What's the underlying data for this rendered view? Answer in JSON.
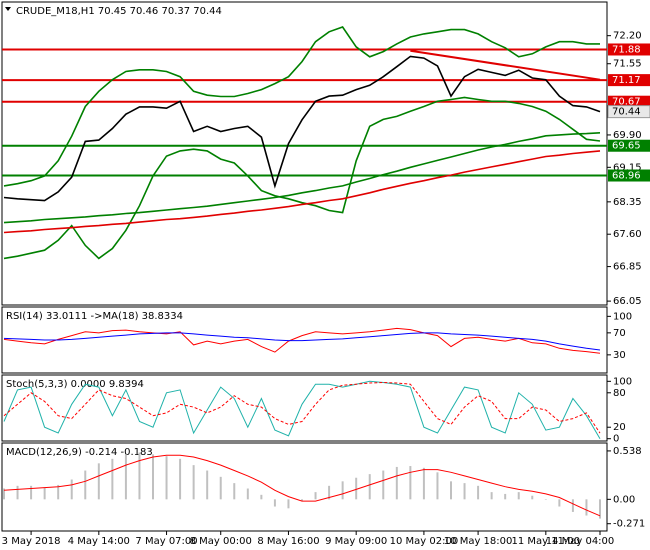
{
  "chart_data": [
    {
      "type": "line",
      "title": "CRUDE_M18,H1  70.45 70.46 70.37 70.44",
      "categories": [
        null,
        null,
        "3 May 2018",
        null,
        null,
        null,
        null,
        "4 May 14:00",
        null,
        null,
        null,
        null,
        "7 May 07:00",
        null,
        null,
        null,
        "8 May 00:00",
        null,
        null,
        null,
        null,
        "8 May 16:00",
        null,
        null,
        null,
        null,
        "9 May 09:00",
        null,
        null,
        null,
        null,
        "10 May 02:00",
        null,
        null,
        null,
        "10 May 18:00",
        null,
        null,
        null,
        null,
        "11 May 11:00",
        null,
        null,
        null,
        "14 May 04:00"
      ],
      "series": [
        {
          "color": "#000000",
          "values": [
            68.45,
            68.42,
            68.4,
            68.38,
            68.58,
            68.92,
            69.75,
            69.78,
            70.05,
            70.38,
            70.55,
            70.55,
            70.52,
            70.68,
            69.98,
            70.1,
            69.98,
            70.05,
            70.1,
            69.85,
            68.72,
            69.7,
            70.25,
            70.68,
            70.8,
            70.82,
            70.95,
            71.05,
            71.25,
            71.48,
            71.72,
            71.68,
            71.5,
            70.8,
            71.25,
            71.42,
            71.35,
            71.28,
            71.4,
            71.22,
            71.18,
            70.8,
            70.58,
            70.55,
            70.44
          ]
        },
        {
          "color": "#008000",
          "values": [
            68.72,
            68.77,
            68.84,
            68.95,
            69.3,
            69.87,
            70.56,
            70.91,
            71.18,
            71.37,
            71.41,
            71.41,
            71.37,
            71.25,
            70.91,
            70.82,
            70.79,
            70.79,
            70.86,
            70.95,
            71.09,
            71.25,
            71.6,
            72.06,
            72.29,
            72.4,
            71.94,
            71.71,
            71.83,
            72.01,
            72.17,
            72.24,
            72.29,
            72.34,
            72.34,
            72.24,
            72.06,
            71.92,
            71.71,
            71.78,
            71.94,
            72.06,
            72.06,
            72.01,
            72.01
          ]
        },
        {
          "color": "#008000",
          "values": [
            67.04,
            67.09,
            67.16,
            67.23,
            67.46,
            67.8,
            67.34,
            67.04,
            67.27,
            67.69,
            68.26,
            68.95,
            69.41,
            69.53,
            69.57,
            69.53,
            69.34,
            69.25,
            68.95,
            68.61,
            68.49,
            68.42,
            68.33,
            68.26,
            68.15,
            68.1,
            69.3,
            70.1,
            70.26,
            70.33,
            70.45,
            70.56,
            70.68,
            70.72,
            70.77,
            70.72,
            70.68,
            70.68,
            70.63,
            70.56,
            70.45,
            70.26,
            70.03,
            69.8,
            69.76
          ]
        },
        {
          "color": "#e00000",
          "values": [
            67.64,
            67.66,
            67.68,
            67.71,
            67.73,
            67.75,
            67.78,
            67.8,
            67.83,
            67.85,
            67.88,
            67.91,
            67.94,
            67.96,
            67.99,
            68.02,
            68.06,
            68.09,
            68.13,
            68.16,
            68.2,
            68.24,
            68.29,
            68.33,
            68.38,
            68.42,
            68.49,
            68.56,
            68.64,
            68.71,
            68.78,
            68.84,
            68.91,
            68.97,
            69.04,
            69.1,
            69.16,
            69.22,
            69.28,
            69.34,
            69.4,
            69.43,
            69.47,
            69.5,
            69.53
          ]
        },
        {
          "color": "#008000",
          "values": [
            67.87,
            67.89,
            67.91,
            67.94,
            67.96,
            67.98,
            68.0,
            68.03,
            68.05,
            68.08,
            68.1,
            68.13,
            68.16,
            68.19,
            68.22,
            68.25,
            68.29,
            68.33,
            68.37,
            68.41,
            68.45,
            68.5,
            68.56,
            68.61,
            68.67,
            68.72,
            68.81,
            68.89,
            68.98,
            69.06,
            69.15,
            69.23,
            69.31,
            69.39,
            69.47,
            69.55,
            69.62,
            69.68,
            69.75,
            69.81,
            69.88,
            69.9,
            69.92,
            69.93,
            69.95
          ]
        }
      ],
      "trend_line": {
        "color": "#e00000",
        "x": [
          30,
          44
        ],
        "values": [
          71.85,
          71.18
        ]
      },
      "levels": [
        {
          "value": 71.88,
          "color": "#e00000"
        },
        {
          "value": 71.17,
          "color": "#e00000"
        },
        {
          "value": 70.67,
          "color": "#e00000"
        },
        {
          "value": 69.65,
          "color": "#008000"
        },
        {
          "value": 68.96,
          "color": "#008000"
        }
      ],
      "last_price": 70.44,
      "ylim": [
        65.96,
        72.98
      ],
      "yticks": [
        {
          "value": 72.2,
          "label": "72.20"
        },
        71.55,
        {
          "value": 69.9,
          "label": "69.90"
        },
        69.15,
        68.35,
        {
          "value": 67.6,
          "label": "67.60"
        },
        66.85,
        66.05
      ]
    },
    {
      "type": "line",
      "title": "RSI(14) 33.0111  ->MA(18) 38.8334",
      "series": [
        {
          "color": "#ff0000",
          "values": [
            58,
            55,
            52,
            50,
            58,
            65,
            72,
            70,
            74,
            75,
            72,
            70,
            68,
            72,
            48,
            55,
            50,
            55,
            58,
            45,
            35,
            55,
            65,
            72,
            70,
            68,
            70,
            72,
            75,
            78,
            76,
            70,
            65,
            45,
            60,
            62,
            58,
            55,
            60,
            52,
            50,
            42,
            38,
            36,
            33.0111
          ]
        },
        {
          "color": "#0000ff",
          "values": [
            60,
            59,
            58,
            57,
            57,
            58,
            60,
            62,
            64,
            66,
            68,
            69,
            70,
            70,
            68,
            66,
            64,
            62,
            61,
            59,
            57,
            56,
            56,
            57,
            58,
            59,
            61,
            63,
            65,
            67,
            69,
            70,
            70,
            68,
            67,
            66,
            64,
            62,
            60,
            58,
            55,
            50,
            46,
            42,
            38.8334
          ]
        }
      ],
      "ylim": [
        -3,
        117
      ],
      "yticks": [
        100,
        70,
        30
      ]
    },
    {
      "type": "line",
      "title": "Stoch(5,3,3) 0.0000 9.8394",
      "series": [
        {
          "color": "#20b2aa",
          "values": [
            30,
            85,
            90,
            20,
            10,
            60,
            95,
            90,
            40,
            85,
            30,
            20,
            80,
            85,
            10,
            50,
            90,
            70,
            20,
            70,
            15,
            5,
            60,
            95,
            95,
            90,
            95,
            100,
            98,
            95,
            90,
            20,
            10,
            50,
            90,
            85,
            20,
            10,
            80,
            60,
            15,
            20,
            70,
            40,
            0
          ]
        },
        {
          "color": "#ff0000",
          "dashed": true,
          "values": [
            40,
            60,
            80,
            65,
            40,
            35,
            60,
            85,
            75,
            70,
            55,
            40,
            45,
            60,
            55,
            45,
            55,
            75,
            60,
            55,
            35,
            25,
            30,
            60,
            85,
            93,
            95,
            97,
            98,
            97,
            95,
            65,
            35,
            25,
            55,
            75,
            65,
            35,
            35,
            55,
            50,
            30,
            35,
            45,
            9.8394
          ]
        }
      ],
      "ylim": [
        -4,
        111
      ],
      "yticks": [
        100,
        80,
        20,
        0
      ]
    },
    {
      "type": "bar",
      "title": "MACD(12,26,9) -0.214 -0.183",
      "series": [
        {
          "type": "bar",
          "color": "#c0c0c0",
          "values": [
            0.12,
            0.15,
            0.15,
            0.13,
            0.16,
            0.22,
            0.32,
            0.4,
            0.45,
            0.5,
            0.52,
            0.5,
            0.48,
            0.45,
            0.38,
            0.32,
            0.25,
            0.18,
            0.12,
            0.05,
            -0.08,
            -0.1,
            -0.02,
            0.08,
            0.15,
            0.2,
            0.24,
            0.28,
            0.32,
            0.36,
            0.37,
            0.35,
            0.3,
            0.2,
            0.18,
            0.15,
            0.08,
            0.06,
            0.08,
            0.04,
            0.0,
            -0.08,
            -0.14,
            -0.18,
            -0.214
          ]
        },
        {
          "type": "line",
          "color": "#ff0000",
          "values": [
            0.1,
            0.11,
            0.12,
            0.13,
            0.14,
            0.16,
            0.2,
            0.26,
            0.32,
            0.38,
            0.43,
            0.47,
            0.49,
            0.49,
            0.47,
            0.43,
            0.38,
            0.32,
            0.26,
            0.19,
            0.1,
            0.03,
            -0.02,
            -0.02,
            0.02,
            0.06,
            0.11,
            0.16,
            0.21,
            0.26,
            0.3,
            0.33,
            0.33,
            0.3,
            0.26,
            0.22,
            0.18,
            0.14,
            0.11,
            0.09,
            0.06,
            0.02,
            -0.05,
            -0.12,
            -0.183
          ]
        }
      ],
      "ylim": [
        -0.352,
        0.626
      ],
      "yticks": [
        0.538,
        {
          "value": 0,
          "label": "0.00"
        },
        -0.271
      ]
    }
  ]
}
